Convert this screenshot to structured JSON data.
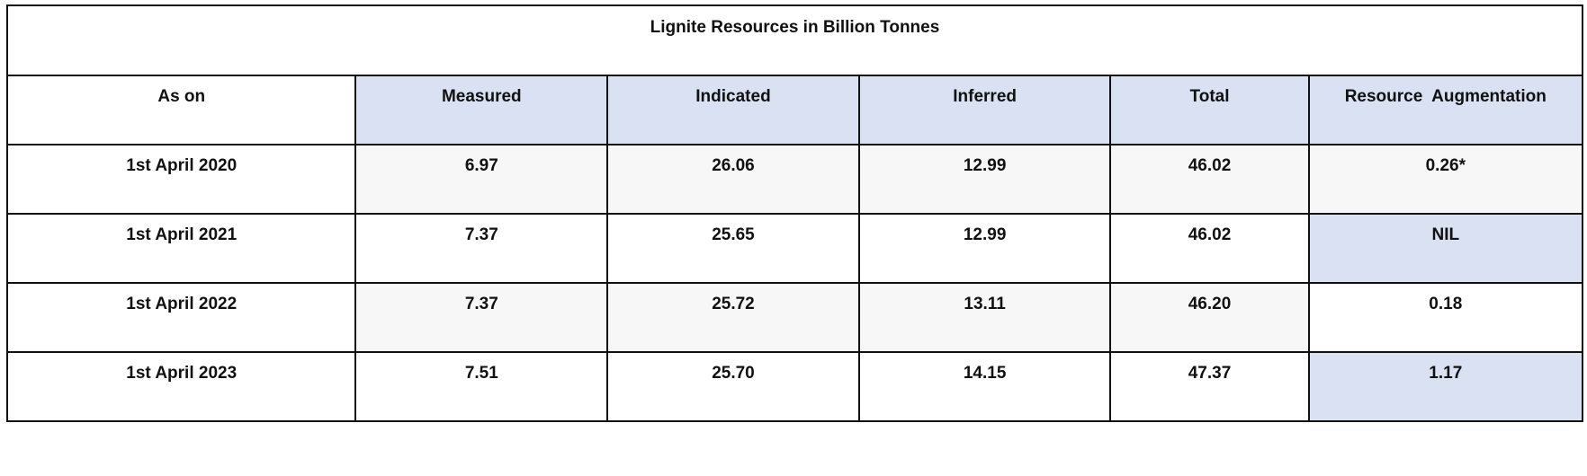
{
  "chart_data": {
    "type": "table",
    "title": "Lignite Resources in Billion Tonnes",
    "columns": [
      "As on",
      "Measured",
      "Indicated",
      "Inferred",
      "Total",
      "Resource  Augmentation"
    ],
    "rows": [
      [
        "1st April 2020",
        "6.97",
        "26.06",
        "12.99",
        "46.02",
        "0.26*"
      ],
      [
        "1st April 2021",
        "7.37",
        "25.65",
        "12.99",
        "46.02",
        "NIL"
      ],
      [
        "1st April 2022",
        "7.37",
        "25.72",
        "13.11",
        "46.20",
        "0.18"
      ],
      [
        "1st April 2023",
        "7.51",
        "25.70",
        "14.15",
        "47.37",
        "1.17"
      ]
    ]
  },
  "colors": {
    "header_fill": "#d9e1f2",
    "alt_row_fill": "#f7f7f7",
    "border": "#111111"
  }
}
